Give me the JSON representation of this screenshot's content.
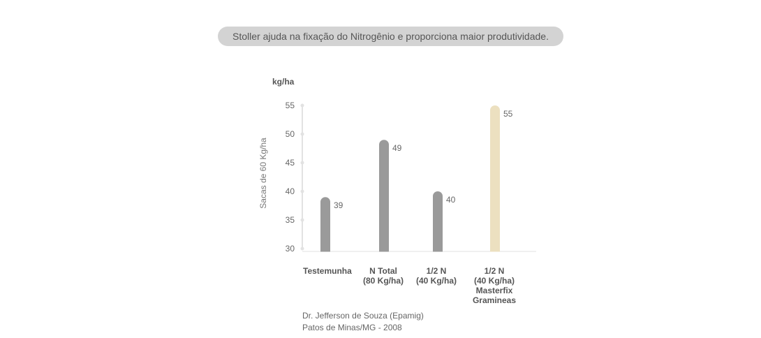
{
  "banner": "Stoller ajuda na fixação do Nitrogênio e proporciona maior produtividade.",
  "chart_data": {
    "type": "bar",
    "unit_label": "kg/ha",
    "ylabel": "Sacas de 60 Kg/ha",
    "ylim": [
      30,
      55
    ],
    "yticks": [
      55,
      50,
      45,
      40,
      35,
      30
    ],
    "categories": [
      "Testemunha",
      "N Total\n(80 Kg/ha)",
      "1/2 N\n(40 Kg/ha)",
      "1/2 N\n(40 Kg/ha)\nMasterfix\nGramineas"
    ],
    "values": [
      39,
      49,
      40,
      55
    ],
    "value_labels": [
      "39",
      "49",
      "40",
      "55"
    ],
    "colors": [
      "#9a9a9a",
      "#9a9a9a",
      "#9a9a9a",
      "#ece0c0"
    ]
  },
  "source": {
    "line1": "Dr. Jefferson de Souza (Epamig)",
    "line2": "Patos de Minas/MG - 2008"
  }
}
